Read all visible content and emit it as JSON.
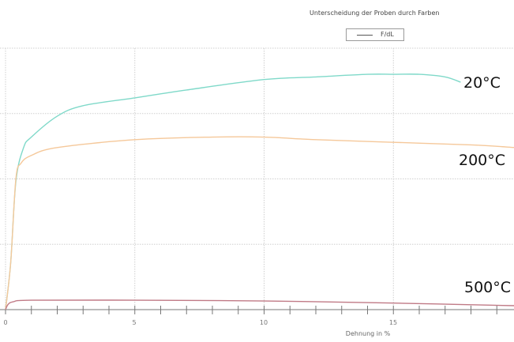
{
  "chart_data": {
    "type": "line",
    "title": "Unterscheidung der Proben durch Farben",
    "xlabel": "Dehnung in %",
    "ylabel": "",
    "xlim": [
      0,
      19.7
    ],
    "ylim": [
      0,
      100
    ],
    "x_ticks": [
      0,
      5,
      10,
      15
    ],
    "x_minor_step": 1,
    "y_ticks_labeled": false,
    "y_grid_values": [
      25,
      50,
      75,
      100
    ],
    "grid": true,
    "legend": {
      "position": "top-right",
      "entries": [
        "F/dL"
      ]
    },
    "series": [
      {
        "name": "20°C",
        "color": "#7fd9c9",
        "x": [
          0,
          0.2,
          0.4,
          0.7,
          1.0,
          2,
          3,
          5,
          7,
          10,
          12,
          14,
          15,
          16,
          17,
          17.6
        ],
        "values": [
          0,
          18,
          49,
          62,
          66,
          74,
          78,
          81,
          84,
          88,
          89,
          90,
          90,
          90,
          89,
          87
        ]
      },
      {
        "name": "200°C",
        "color": "#f5c89a",
        "x": [
          0,
          0.2,
          0.4,
          0.6,
          1,
          2,
          5,
          8,
          10,
          12,
          15,
          18,
          19.7
        ],
        "values": [
          0,
          18,
          50,
          56,
          59,
          62,
          65,
          66,
          66,
          65,
          64,
          63,
          62
        ]
      },
      {
        "name": "500°C",
        "color": "#c07a86",
        "x": [
          0,
          0.1,
          0.3,
          1,
          5,
          10,
          15,
          19.7
        ],
        "values": [
          0,
          2,
          3,
          3.6,
          3.6,
          3.3,
          2.5,
          1.5
        ]
      }
    ],
    "annotations": [
      "20°C",
      "200°C",
      "500°C"
    ]
  },
  "labels": {
    "title": "Unterscheidung der Proben durch Farben",
    "legend_entry": "F/dL",
    "xlabel": "Dehnung in %",
    "tick_0": "0",
    "tick_5": "5",
    "tick_10": "10",
    "tick_15": "15",
    "series_20": "20°C",
    "series_200": "200°C",
    "series_500": "500°C"
  }
}
